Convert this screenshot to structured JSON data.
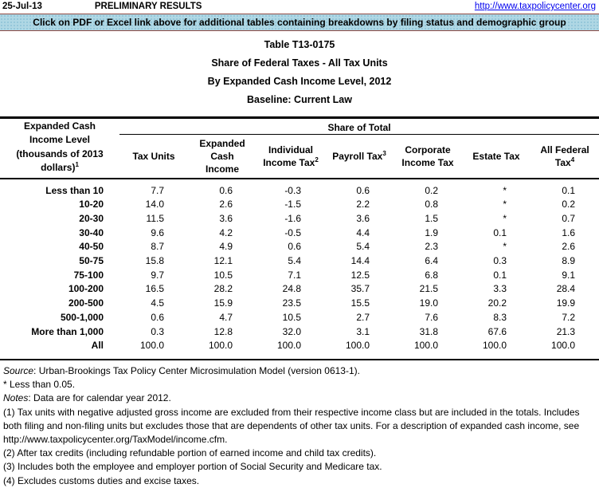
{
  "page": {
    "date": "25-Jul-13",
    "preliminary": "PRELIMINARY RESULTS",
    "url": "http://www.taxpolicycenter.org",
    "banner": "Click on PDF or Excel link above for additional tables containing breakdowns by filing status and demographic group"
  },
  "title": {
    "line1": "Table T13-0175",
    "line2": "Share of Federal Taxes - All Tax Units",
    "line3": "By Expanded Cash Income Level, 2012",
    "line4": "Baseline: Current Law"
  },
  "table": {
    "row_header": {
      "lines": [
        "Expanded Cash",
        "Income Level",
        "(thousands of 2013",
        "dollars)"
      ],
      "sup": "1"
    },
    "group_header": "Share of Total",
    "columns": [
      {
        "lines": [
          "Tax Units"
        ],
        "sup": ""
      },
      {
        "lines": [
          "Expanded Cash",
          "Income"
        ],
        "sup": ""
      },
      {
        "lines": [
          "Individual",
          "Income Tax"
        ],
        "sup": "2"
      },
      {
        "lines": [
          "Payroll Tax"
        ],
        "sup": "3"
      },
      {
        "lines": [
          "Corporate",
          "Income Tax"
        ],
        "sup": ""
      },
      {
        "lines": [
          "Estate Tax"
        ],
        "sup": ""
      },
      {
        "lines": [
          "All Federal",
          "Tax"
        ],
        "sup": "4"
      }
    ],
    "rows": [
      {
        "label": "Less than 10",
        "values": [
          "7.7",
          "0.6",
          "-0.3",
          "0.6",
          "0.2",
          "*",
          "0.1"
        ]
      },
      {
        "label": "10-20",
        "values": [
          "14.0",
          "2.6",
          "-1.5",
          "2.2",
          "0.8",
          "*",
          "0.2"
        ]
      },
      {
        "label": "20-30",
        "values": [
          "11.5",
          "3.6",
          "-1.6",
          "3.6",
          "1.5",
          "*",
          "0.7"
        ]
      },
      {
        "label": "30-40",
        "values": [
          "9.6",
          "4.2",
          "-0.5",
          "4.4",
          "1.9",
          "0.1",
          "1.6"
        ]
      },
      {
        "label": "40-50",
        "values": [
          "8.7",
          "4.9",
          "0.6",
          "5.4",
          "2.3",
          "*",
          "2.6"
        ]
      },
      {
        "label": "50-75",
        "values": [
          "15.8",
          "12.1",
          "5.4",
          "14.4",
          "6.4",
          "0.3",
          "8.9"
        ]
      },
      {
        "label": "75-100",
        "values": [
          "9.7",
          "10.5",
          "7.1",
          "12.5",
          "6.8",
          "0.1",
          "9.1"
        ]
      },
      {
        "label": "100-200",
        "values": [
          "16.5",
          "28.2",
          "24.8",
          "35.7",
          "21.5",
          "3.3",
          "28.4"
        ]
      },
      {
        "label": "200-500",
        "values": [
          "4.5",
          "15.9",
          "23.5",
          "15.5",
          "19.0",
          "20.2",
          "19.9"
        ]
      },
      {
        "label": "500-1,000",
        "values": [
          "0.6",
          "4.7",
          "10.5",
          "2.7",
          "7.6",
          "8.3",
          "7.2"
        ]
      },
      {
        "label": "More than 1,000",
        "values": [
          "0.3",
          "12.8",
          "32.0",
          "3.1",
          "31.8",
          "67.6",
          "21.3"
        ]
      },
      {
        "label": "All",
        "values": [
          "100.0",
          "100.0",
          "100.0",
          "100.0",
          "100.0",
          "100.0",
          "100.0"
        ]
      }
    ]
  },
  "footer": {
    "source_label": "Source",
    "source_rest": ": Urban-Brookings Tax Policy Center Microsimulation Model (version 0613-1).",
    "asterisk_note": "* Less than 0.05.",
    "notes_label": "Notes",
    "notes_rest": ": Data are for calendar year 2012.",
    "footnotes": [
      "(1) Tax units with negative adjusted gross income are excluded from their respective income class but are included in the totals. Includes both filing and non-filing units but excludes those that are dependents of other tax units. For a description of expanded cash income, see http://www.taxpolicycenter.org/TaxModel/income.cfm.",
      "(2) After tax credits (including refundable portion of earned income and child tax credits).",
      "(3) Includes both the employee and employer portion of Social Security and Medicare tax.",
      "(4) Excludes customs duties and excise taxes."
    ]
  },
  "colors": {
    "banner_bg": "#AFD7E4",
    "banner_border": "#8E4A44",
    "link": "#0000EE",
    "text": "#000000"
  }
}
